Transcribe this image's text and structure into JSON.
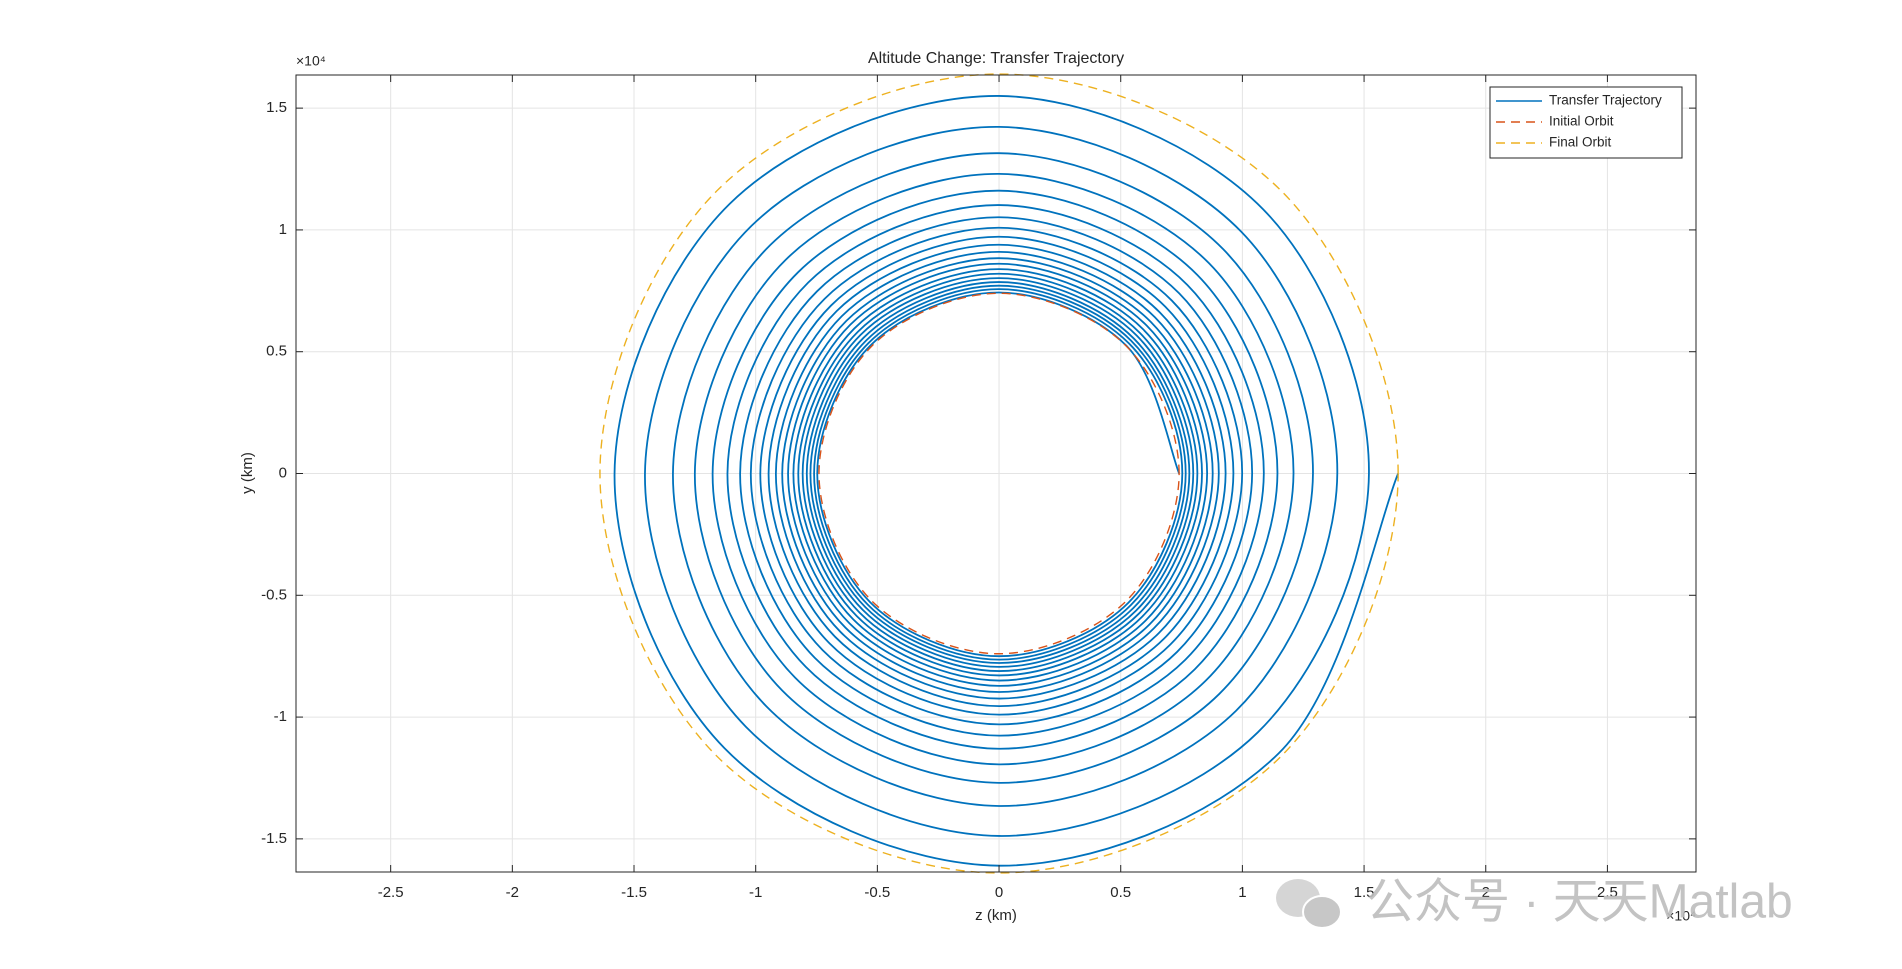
{
  "chart_data": {
    "type": "line",
    "title": "Altitude Change: Transfer Trajectory",
    "x_label": "z (km)",
    "y_label": "y (km)",
    "x_multiplier": "×10⁴",
    "y_multiplier": "×10⁴",
    "xlim": [
      -28890,
      28640
    ],
    "ylim": [
      -16360,
      16360
    ],
    "xticks": [
      {
        "value": -25000,
        "label": "-2.5"
      },
      {
        "value": -20000,
        "label": "-2"
      },
      {
        "value": -15000,
        "label": "-1.5"
      },
      {
        "value": -10000,
        "label": "-1"
      },
      {
        "value": -5000,
        "label": "-0.5"
      },
      0,
      {
        "value": 5000,
        "label": "0.5"
      },
      {
        "value": 10000,
        "label": "1"
      },
      {
        "value": 15000,
        "label": "1.5"
      },
      {
        "value": 20000,
        "label": "2"
      },
      {
        "value": 25000,
        "label": "2.5"
      }
    ],
    "yticks": [
      {
        "value": -15000,
        "label": "-1.5"
      },
      {
        "value": -10000,
        "label": "-1"
      },
      {
        "value": -5000,
        "label": "-0.5"
      },
      0,
      {
        "value": 5000,
        "label": "0.5"
      },
      {
        "value": 10000,
        "label": "1"
      },
      {
        "value": 15000,
        "label": "1.5"
      }
    ],
    "grid": true,
    "legend": "northeast",
    "series": [
      {
        "name": "Transfer Trajectory",
        "color": "#0072bd",
        "line_style": "solid",
        "x": [
          7400,
          5240,
          0,
          -5270,
          -7470,
          -5290,
          0,
          5310,
          7530,
          5340,
          0,
          -5360,
          -7600,
          -5390,
          0,
          5410,
          7670,
          5440,
          0,
          -5460,
          -7750,
          -5490,
          0,
          5520,
          7820,
          5540,
          0,
          -5570,
          -7900,
          -5600,
          0,
          5630,
          7980,
          5660,
          0,
          -5690,
          -8070,
          -5720,
          0,
          5750,
          8150,
          5780,
          0,
          -5810,
          -8250,
          -5850,
          0,
          5880,
          8340,
          5920,
          0,
          -5950,
          -8450,
          -5990,
          0,
          6030,
          8550,
          6070,
          0,
          -6110,
          -8670,
          -6150,
          0,
          6190,
          8780,
          6230,
          0,
          -6270,
          -8910,
          -6320,
          0,
          6360,
          9030,
          6410,
          0,
          -6460,
          -9170,
          -6510,
          0,
          6560,
          9310,
          6610,
          0,
          -6670,
          -9470,
          -6720,
          0,
          6780,
          9630,
          6840,
          0,
          -6900,
          -9810,
          -6970,
          0,
          7030,
          9990,
          7100,
          0,
          -7170,
          -10200,
          -7250,
          0,
          7320,
          10400,
          7400,
          0,
          -7480,
          -10640,
          -7570,
          0,
          7650,
          10880,
          7740,
          0,
          -7840,
          -11160,
          -7940,
          0,
          8040,
          11440,
          8150,
          0,
          -8260,
          -11770,
          -8380,
          0,
          8500,
          12100,
          8630,
          0,
          -8770,
          -12500,
          -8910,
          0,
          9050,
          12900,
          9210,
          0,
          -9390,
          -13400,
          -9560,
          0,
          9740,
          13900,
          9940,
          0,
          -10170,
          -14550,
          -10400,
          0,
          10630,
          15200,
          10850,
          0,
          -11070,
          -15800,
          -11280,
          0,
          11490,
          16400
        ],
        "y": [
          0,
          5240,
          7430,
          5270,
          0,
          -5290,
          -7500,
          -5310,
          0,
          5340,
          7570,
          5360,
          0,
          -5390,
          -7640,
          -5410,
          0,
          5440,
          7710,
          5460,
          0,
          -5490,
          -7780,
          -5520,
          0,
          5540,
          7860,
          5570,
          0,
          -5600,
          -7940,
          -5630,
          0,
          5660,
          8020,
          5690,
          0,
          -5720,
          -8110,
          -5750,
          0,
          5780,
          8200,
          5810,
          0,
          -5850,
          -8290,
          -5880,
          0,
          5920,
          8390,
          5950,
          0,
          -5990,
          -8500,
          -6030,
          0,
          6070,
          8610,
          6110,
          0,
          -6150,
          -8720,
          -6190,
          0,
          6230,
          8840,
          6270,
          0,
          -6320,
          -8970,
          -6360,
          0,
          6410,
          9100,
          6460,
          0,
          -6510,
          -9240,
          -6560,
          0,
          6610,
          9390,
          6670,
          0,
          -6720,
          -9550,
          -6780,
          0,
          6840,
          9720,
          6900,
          0,
          -6970,
          -9900,
          -7030,
          0,
          7100,
          10090,
          7170,
          0,
          -7250,
          -10300,
          -7320,
          0,
          7400,
          10520,
          7480,
          0,
          -7570,
          -10760,
          -7650,
          0,
          7740,
          11020,
          7840,
          0,
          -7940,
          -11300,
          -8040,
          0,
          8150,
          11610,
          8260,
          0,
          -8380,
          -11940,
          -8500,
          0,
          8630,
          12300,
          8770,
          0,
          -8910,
          -12700,
          -9050,
          0,
          9210,
          13150,
          9390,
          0,
          -9560,
          -13650,
          -9740,
          0,
          9940,
          14230,
          10170,
          0,
          -10400,
          -14880,
          -10630,
          0,
          10850,
          15500,
          11070,
          0,
          -11280,
          -16100,
          -11490,
          0
        ]
      },
      {
        "name": "Initial Orbit",
        "color": "#d95319",
        "line_style": "dashed",
        "x": [
          7400,
          5230,
          0,
          -5230,
          -7400,
          -5230,
          0,
          5230,
          7400
        ],
        "y": [
          0,
          5230,
          7400,
          5230,
          0,
          -5230,
          -7400,
          -5230,
          0
        ]
      },
      {
        "name": "Final Orbit",
        "color": "#edb120",
        "line_style": "dashed",
        "x": [
          16400,
          11600,
          0,
          -11600,
          -16400,
          -11600,
          0,
          11600,
          16400
        ],
        "y": [
          0,
          11600,
          16400,
          11600,
          0,
          -11600,
          -16400,
          -11600,
          0
        ]
      }
    ]
  },
  "watermark": "公众号 · 天天Matlab"
}
